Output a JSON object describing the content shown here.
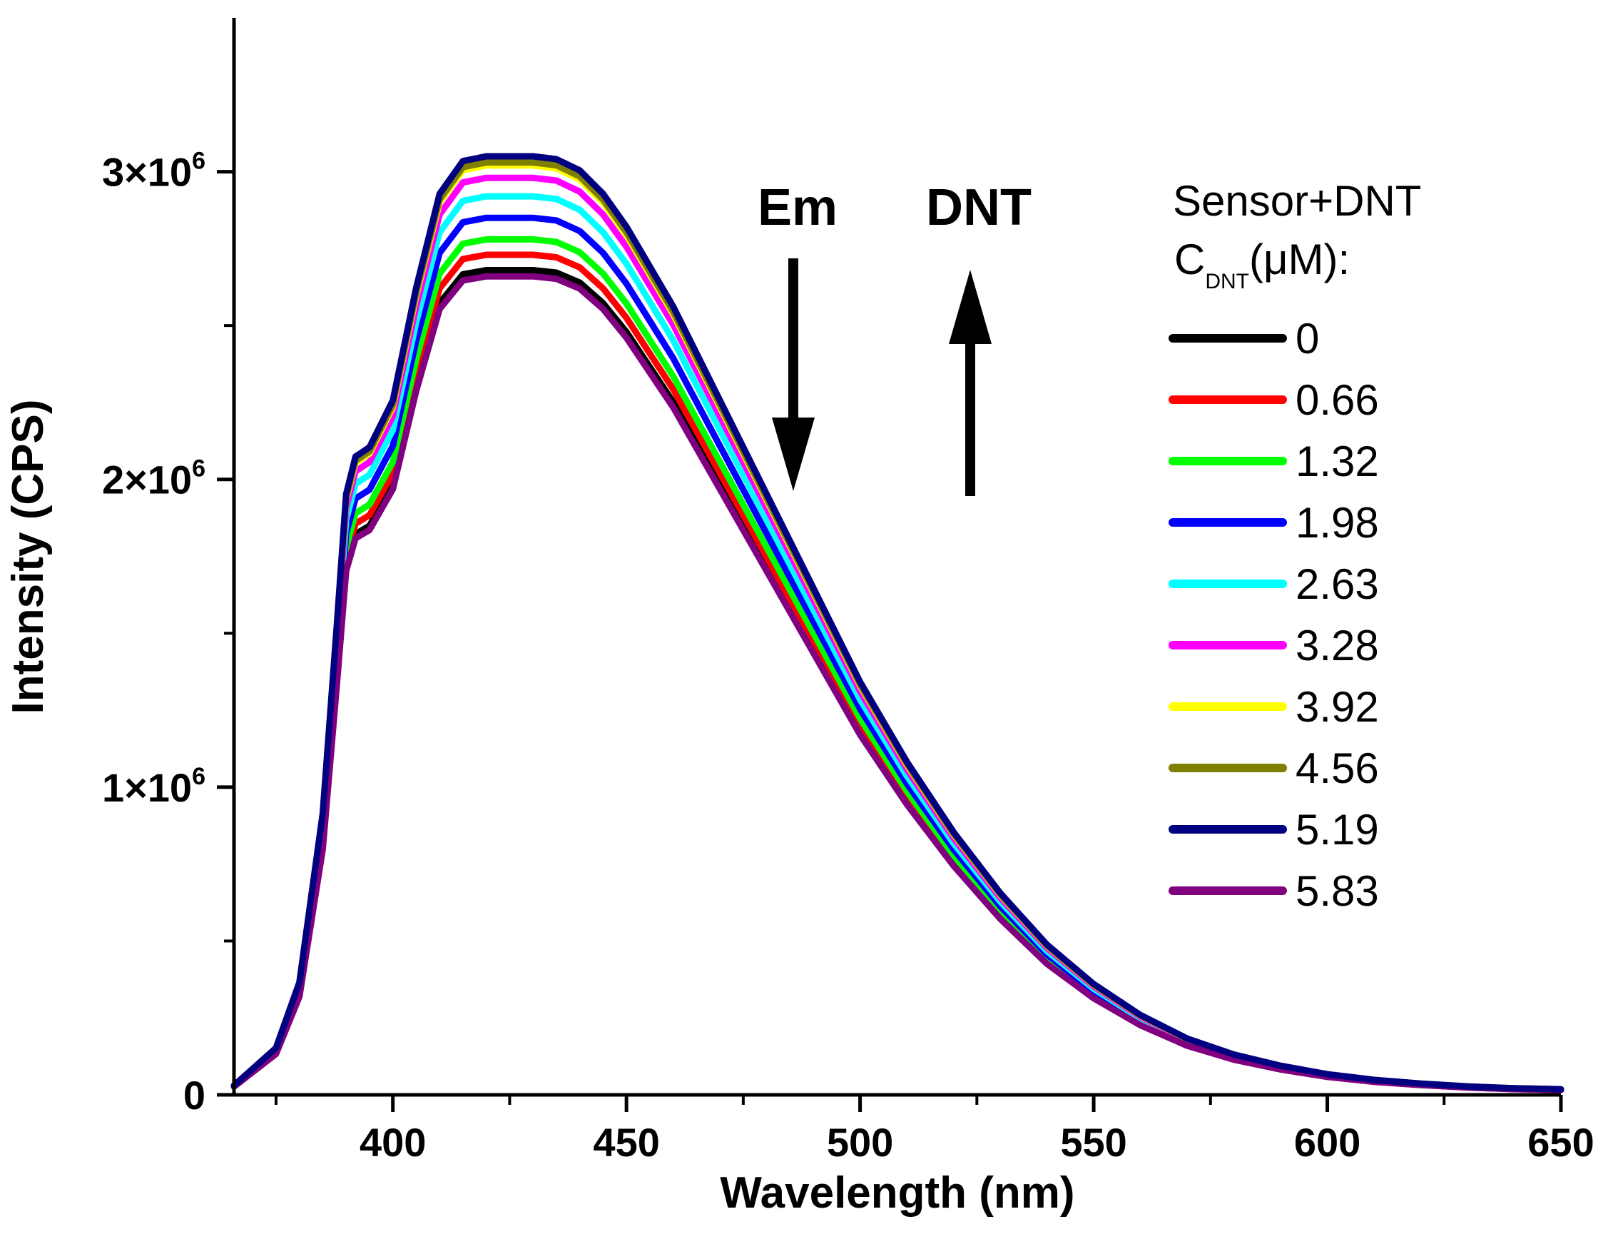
{
  "chart_data": {
    "type": "line",
    "xlabel": "Wavelength (nm)",
    "ylabel": "Intensity (CPS)",
    "xlim": [
      366,
      650
    ],
    "ylim": [
      0,
      3500000
    ],
    "x_ticks": [
      400,
      450,
      500,
      550,
      600,
      650
    ],
    "x_tick_labels": [
      "400",
      "450",
      "500",
      "550",
      "600",
      "650"
    ],
    "y_ticks": [
      0,
      1000000,
      2000000,
      3000000
    ],
    "y_tick_labels": [
      {
        "mantissa": "0",
        "exp": ""
      },
      {
        "mantissa": "1×10",
        "exp": "6"
      },
      {
        "mantissa": "2×10",
        "exp": "6"
      },
      {
        "mantissa": "3×10",
        "exp": "6"
      }
    ],
    "annotations": {
      "em": "Em",
      "dnt": "DNT",
      "em_direction": "down",
      "dnt_direction": "up"
    },
    "legend": {
      "position": "right",
      "title_line1": "Sensor+DNT",
      "title_prefix": "C",
      "title_sub": "DNT",
      "title_suffix": "(μM):"
    },
    "series_shape": {
      "x": [
        366,
        375,
        380,
        385,
        388,
        390,
        392,
        395,
        400,
        405,
        410,
        415,
        420,
        425,
        430,
        435,
        440,
        445,
        450,
        460,
        470,
        480,
        490,
        500,
        510,
        520,
        530,
        540,
        550,
        560,
        570,
        580,
        590,
        600,
        610,
        620,
        630,
        640,
        650
      ],
      "y_norm": [
        0.01,
        0.05,
        0.12,
        0.3,
        0.5,
        0.64,
        0.68,
        0.69,
        0.74,
        0.86,
        0.96,
        0.995,
        1.0,
        1.0,
        1.0,
        0.997,
        0.985,
        0.96,
        0.925,
        0.84,
        0.74,
        0.64,
        0.54,
        0.44,
        0.355,
        0.28,
        0.215,
        0.16,
        0.118,
        0.085,
        0.06,
        0.043,
        0.031,
        0.022,
        0.016,
        0.012,
        0.009,
        0.007,
        0.006
      ]
    },
    "series": [
      {
        "name": "0",
        "color": "#000000",
        "peak": 2680000
      },
      {
        "name": "0.66",
        "color": "#ff0000",
        "peak": 2730000
      },
      {
        "name": "1.32",
        "color": "#00ff00",
        "peak": 2780000
      },
      {
        "name": "1.98",
        "color": "#0000ff",
        "peak": 2850000
      },
      {
        "name": "2.63",
        "color": "#00ffff",
        "peak": 2920000
      },
      {
        "name": "3.28",
        "color": "#ff00ff",
        "peak": 2980000
      },
      {
        "name": "3.92",
        "color": "#ffff00",
        "peak": 3020000
      },
      {
        "name": "4.56",
        "color": "#808000",
        "peak": 3030000
      },
      {
        "name": "5.19",
        "color": "#000080",
        "peak": 3050000
      },
      {
        "name": "5.83",
        "color": "#800080",
        "peak": 2660000
      }
    ]
  }
}
